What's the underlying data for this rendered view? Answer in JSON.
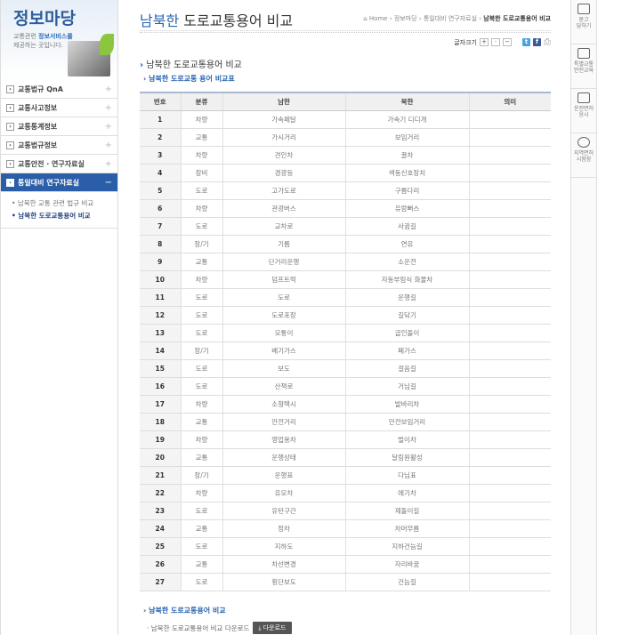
{
  "sidebar": {
    "banner_title": "정보마당",
    "banner_sub1": "교통관련 ",
    "banner_sub_em": "정보서비스를",
    "banner_sub2": "제공하는 곳입니다.",
    "menu": [
      {
        "label": "교통법규 QnA"
      },
      {
        "label": "교통사고정보"
      },
      {
        "label": "교통통계정보"
      },
      {
        "label": "교통법규정보"
      },
      {
        "label": "교통안전 · 연구자료실"
      },
      {
        "label": "통일대비 연구자료실",
        "active": true
      }
    ],
    "submenu": [
      "남북한 교통 관련 법규 비교",
      "남북한 도로교통용어 비교"
    ]
  },
  "header": {
    "title_em": "남북한",
    "title": " 도로교통용어 비교",
    "breadcrumb": [
      "Home",
      "정보마당",
      "통일대비 연구자료실",
      "남북한 도로교통용어 비교"
    ],
    "font_size_label": "글자크기",
    "font_plus": "+",
    "font_reset": "·",
    "font_minus": "−",
    "twitter": "t",
    "facebook": "f",
    "print_icon": "printer-icon"
  },
  "section": {
    "title": "남북한 도로교통용어 비교",
    "subtitle": "남북한 도로교통 용어 비교표"
  },
  "table": {
    "headers": [
      "번호",
      "분류",
      "남한",
      "북한",
      "의미"
    ],
    "rows": [
      [
        "1",
        "차량",
        "가속페달",
        "가속기 디디개",
        ""
      ],
      [
        "2",
        "교통",
        "가시거리",
        "보임거리",
        ""
      ],
      [
        "3",
        "차량",
        "견인차",
        "끌차",
        ""
      ],
      [
        "4",
        "장비",
        "경광등",
        "색동신호장치",
        ""
      ],
      [
        "5",
        "도로",
        "고가도로",
        "구름다리",
        ""
      ],
      [
        "6",
        "차량",
        "관광버스",
        "유람뻐스",
        ""
      ],
      [
        "7",
        "도로",
        "교차로",
        "사귐길",
        ""
      ],
      [
        "8",
        "장/기",
        "기름",
        "연유",
        ""
      ],
      [
        "9",
        "교통",
        "단거리운행",
        "소운전",
        ""
      ],
      [
        "10",
        "차량",
        "덤프트럭",
        "자동부림식 화물차",
        ""
      ],
      [
        "11",
        "도로",
        "도로",
        "운행길",
        ""
      ],
      [
        "12",
        "도로",
        "도로포장",
        "길닦기",
        ""
      ],
      [
        "13",
        "도로",
        "모퉁이",
        "굽인돌이",
        ""
      ],
      [
        "14",
        "장/기",
        "배기가스",
        "폐가스",
        ""
      ],
      [
        "15",
        "도로",
        "보도",
        "걸음길",
        ""
      ],
      [
        "16",
        "도로",
        "산책로",
        "거님길",
        ""
      ],
      [
        "17",
        "차량",
        "소형택시",
        "발바리차",
        ""
      ],
      [
        "18",
        "교통",
        "안전거리",
        "안전보임거리",
        ""
      ],
      [
        "19",
        "차량",
        "영업용차",
        "벌이차",
        ""
      ],
      [
        "20",
        "교통",
        "운행상태",
        "달림원활성",
        ""
      ],
      [
        "21",
        "장/기",
        "운행표",
        "다님표",
        ""
      ],
      [
        "22",
        "차량",
        "유모차",
        "애기차",
        ""
      ],
      [
        "23",
        "도로",
        "유턴구간",
        "제돌이길",
        ""
      ],
      [
        "24",
        "교통",
        "정차",
        "차머무름",
        ""
      ],
      [
        "25",
        "도로",
        "지하도",
        "지하건늠길",
        ""
      ],
      [
        "26",
        "교통",
        "차선변경",
        "자리바꿈",
        ""
      ],
      [
        "27",
        "도로",
        "횡단보도",
        "건늠길",
        ""
      ]
    ]
  },
  "footer": {
    "title": "남북한 도로교통용어 비교",
    "download_text": "· 남북한 도로교통용어 비교 다운로드",
    "download_button": "⤓ 다운로드"
  },
  "quick": [
    {
      "label": "묻고\n답하기"
    },
    {
      "label": "특별교통\n안전교육"
    },
    {
      "label": "운전면허\n응시"
    },
    {
      "label": "지역면허\n시험장"
    }
  ]
}
